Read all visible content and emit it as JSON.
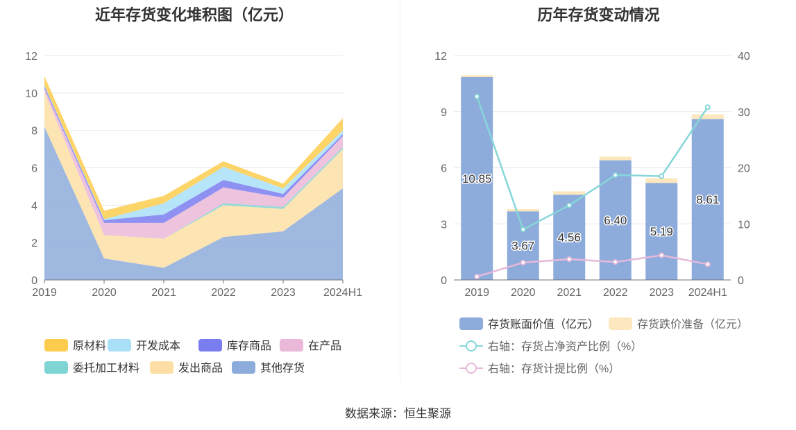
{
  "charts": {
    "left_title": "近年存货变化堆积图（亿元）",
    "right_title": "历年存货变动情况"
  },
  "source": "数据来源：恒生聚源",
  "chart_data": [
    {
      "type": "area",
      "title": "近年存货变化堆积图（亿元）",
      "categories": [
        "2019",
        "2020",
        "2021",
        "2022",
        "2023",
        "2024H1"
      ],
      "ylim": [
        0,
        12
      ],
      "yticks": [
        0,
        2,
        4,
        6,
        8,
        10,
        12
      ],
      "grid": true,
      "legend_position": "bottom",
      "series": [
        {
          "name": "其他存货",
          "color": "#8eacdb",
          "values": [
            8.2,
            1.15,
            0.65,
            2.3,
            2.6,
            4.9
          ]
        },
        {
          "name": "发出商品",
          "color": "#fddfa6",
          "values": [
            1.85,
            1.25,
            1.55,
            1.7,
            1.2,
            2.1
          ]
        },
        {
          "name": "委托加工材料",
          "color": "#7fd4d4",
          "values": [
            0.0,
            0.0,
            0.0,
            0.1,
            0.1,
            0.1
          ]
        },
        {
          "name": "在产品",
          "color": "#eab8d8",
          "values": [
            0.2,
            0.65,
            0.85,
            0.85,
            0.5,
            0.6
          ]
        },
        {
          "name": "库存商品",
          "color": "#7a7df0",
          "values": [
            0.12,
            0.15,
            0.45,
            0.4,
            0.2,
            0.1
          ]
        },
        {
          "name": "开发成本",
          "color": "#a9e0f8",
          "values": [
            0.05,
            0.05,
            0.6,
            0.7,
            0.3,
            0.2
          ]
        },
        {
          "name": "原材料",
          "color": "#fdcc4d",
          "values": [
            0.48,
            0.45,
            0.4,
            0.3,
            0.25,
            0.65
          ]
        }
      ]
    },
    {
      "type": "bar",
      "title": "历年存货变动情况",
      "categories": [
        "2019",
        "2020",
        "2021",
        "2022",
        "2023",
        "2024H1"
      ],
      "ylim": [
        0,
        12
      ],
      "yticks": [
        0,
        3,
        6,
        9,
        12
      ],
      "y2lim": [
        0,
        40
      ],
      "y2ticks": [
        0,
        10,
        20,
        30,
        40
      ],
      "grid": true,
      "legend_position": "bottom",
      "bar_series": [
        {
          "name": "存货账面价值（亿元）",
          "color": "#8eacdb",
          "values": [
            10.85,
            3.67,
            4.56,
            6.4,
            5.19,
            8.61
          ],
          "labels": [
            "10.85",
            "3.67",
            "4.56",
            "6.40",
            "5.19",
            "8.61"
          ]
        },
        {
          "name": "存货跌价准备（亿元）",
          "color": "#fde7bf",
          "values": [
            0.1,
            0.12,
            0.18,
            0.2,
            0.25,
            0.25
          ]
        }
      ],
      "line_series": [
        {
          "name": "右轴：存货占净资产比例（%）",
          "color": "#86d6d9",
          "values": [
            32.7,
            9.0,
            13.3,
            18.7,
            18.5,
            30.8
          ]
        },
        {
          "name": "右轴：存货计提比例（%）",
          "color": "#e6b9d9",
          "values": [
            0.6,
            3.1,
            3.7,
            3.2,
            4.4,
            2.8
          ]
        }
      ]
    }
  ]
}
